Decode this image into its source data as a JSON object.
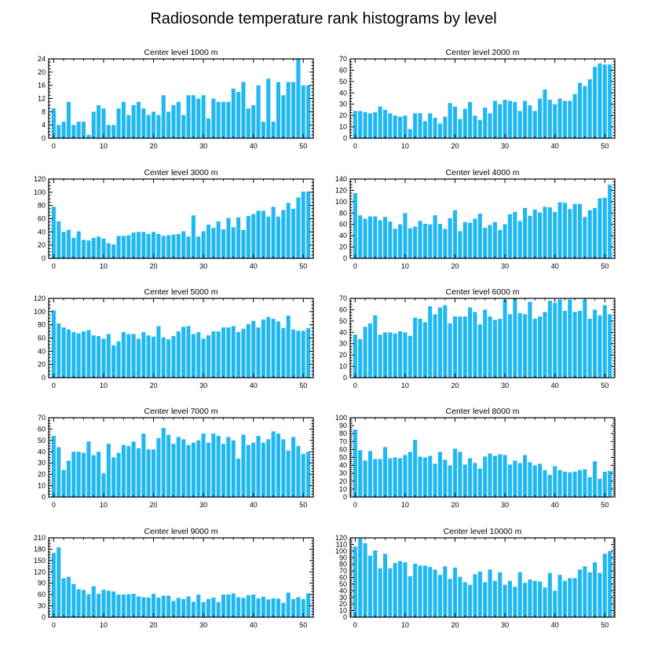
{
  "title": "Radiosonde temperature rank histograms by level",
  "bar_color": "#1fb8f2",
  "chart_data": [
    {
      "type": "bar",
      "title": "Center level 1000 m",
      "x_ticks": [
        0,
        10,
        20,
        30,
        40,
        50
      ],
      "xlim": [
        -1,
        52
      ],
      "ylim": [
        0,
        24
      ],
      "y_ticks": [
        0,
        4,
        8,
        12,
        16,
        20,
        24
      ],
      "values": [
        9,
        4,
        5,
        11,
        4,
        5,
        5,
        1,
        8,
        10,
        9,
        4,
        4,
        9,
        11,
        7,
        10,
        11,
        9,
        7,
        8,
        7,
        13,
        8,
        10,
        11,
        7,
        13,
        13,
        12,
        13,
        6,
        12,
        11,
        11,
        11,
        15,
        14,
        17,
        9,
        10,
        16,
        5,
        18,
        5,
        17,
        13,
        17,
        17,
        24,
        16,
        16
      ]
    },
    {
      "type": "bar",
      "title": "Center level 2000 m",
      "x_ticks": [
        0,
        10,
        20,
        30,
        40,
        50
      ],
      "xlim": [
        -1,
        52
      ],
      "ylim": [
        0,
        70
      ],
      "y_ticks": [
        0,
        10,
        20,
        30,
        40,
        50,
        60,
        70
      ],
      "values": [
        24,
        24,
        23,
        22,
        23,
        28,
        25,
        22,
        20,
        19,
        20,
        8,
        22,
        22,
        15,
        22,
        18,
        13,
        19,
        31,
        28,
        17,
        26,
        32,
        20,
        16,
        27,
        22,
        33,
        30,
        34,
        33,
        32,
        24,
        33,
        29,
        24,
        35,
        43,
        34,
        30,
        35,
        33,
        33,
        39,
        49,
        46,
        52,
        63,
        66,
        65,
        65
      ]
    },
    {
      "type": "bar",
      "title": "Center level 3000 m",
      "x_ticks": [
        0,
        10,
        20,
        30,
        40,
        50
      ],
      "xlim": [
        -1,
        52
      ],
      "ylim": [
        0,
        120
      ],
      "y_ticks": [
        0,
        20,
        40,
        60,
        80,
        100,
        120
      ],
      "values": [
        78,
        56,
        40,
        43,
        31,
        41,
        28,
        27,
        31,
        33,
        30,
        23,
        21,
        34,
        34,
        35,
        39,
        40,
        40,
        37,
        40,
        37,
        34,
        35,
        36,
        37,
        41,
        33,
        65,
        33,
        41,
        51,
        46,
        56,
        44,
        61,
        47,
        62,
        43,
        64,
        67,
        72,
        72,
        63,
        78,
        63,
        73,
        84,
        75,
        92,
        101,
        101
      ]
    },
    {
      "type": "bar",
      "title": "Center level 4000 m",
      "x_ticks": [
        0,
        10,
        20,
        30,
        40,
        50
      ],
      "xlim": [
        -1,
        52
      ],
      "ylim": [
        0,
        140
      ],
      "y_ticks": [
        0,
        20,
        40,
        60,
        80,
        100,
        120,
        140
      ],
      "values": [
        115,
        76,
        70,
        74,
        74,
        67,
        73,
        65,
        52,
        60,
        80,
        53,
        56,
        66,
        61,
        60,
        76,
        61,
        52,
        71,
        85,
        48,
        64,
        63,
        70,
        79,
        54,
        59,
        64,
        50,
        60,
        78,
        82,
        66,
        89,
        75,
        86,
        81,
        91,
        90,
        82,
        99,
        98,
        87,
        96,
        96,
        73,
        85,
        89,
        106,
        107,
        130
      ]
    },
    {
      "type": "bar",
      "title": "Center level 5000 m",
      "x_ticks": [
        0,
        10,
        20,
        30,
        40,
        50
      ],
      "xlim": [
        -1,
        52
      ],
      "ylim": [
        0,
        120
      ],
      "y_ticks": [
        0,
        20,
        40,
        60,
        80,
        100,
        120
      ],
      "values": [
        102,
        82,
        76,
        73,
        69,
        67,
        70,
        72,
        64,
        63,
        59,
        66,
        49,
        55,
        69,
        66,
        66,
        59,
        69,
        64,
        62,
        78,
        61,
        58,
        63,
        70,
        77,
        78,
        66,
        69,
        59,
        64,
        70,
        70,
        76,
        76,
        78,
        69,
        74,
        81,
        86,
        76,
        88,
        92,
        89,
        85,
        75,
        94,
        73,
        71,
        71,
        75
      ]
    },
    {
      "type": "bar",
      "title": "Center level 6000 m",
      "x_ticks": [
        0,
        10,
        20,
        30,
        40,
        50
      ],
      "xlim": [
        -1,
        52
      ],
      "ylim": [
        0,
        70
      ],
      "y_ticks": [
        0,
        10,
        20,
        30,
        40,
        50,
        60,
        70
      ],
      "values": [
        38,
        34,
        45,
        48,
        55,
        38,
        40,
        40,
        39,
        41,
        40,
        37,
        53,
        52,
        49,
        63,
        56,
        62,
        64,
        48,
        54,
        54,
        54,
        62,
        58,
        47,
        60,
        54,
        51,
        52,
        69,
        56,
        70,
        57,
        56,
        67,
        52,
        54,
        58,
        68,
        66,
        69,
        59,
        69,
        58,
        59,
        69,
        52,
        60,
        55,
        64,
        56
      ]
    },
    {
      "type": "bar",
      "title": "Center level 7000 m",
      "x_ticks": [
        0,
        10,
        20,
        30,
        40,
        50
      ],
      "xlim": [
        -1,
        52
      ],
      "ylim": [
        0,
        70
      ],
      "y_ticks": [
        0,
        10,
        20,
        30,
        40,
        50,
        60,
        70
      ],
      "values": [
        54,
        44,
        24,
        32,
        40,
        40,
        39,
        49,
        37,
        40,
        21,
        47,
        35,
        39,
        46,
        45,
        49,
        43,
        56,
        42,
        42,
        52,
        61,
        55,
        47,
        53,
        51,
        46,
        48,
        50,
        56,
        48,
        56,
        54,
        47,
        53,
        50,
        34,
        55,
        46,
        48,
        54,
        48,
        51,
        58,
        56,
        51,
        41,
        53,
        45,
        38,
        40
      ]
    },
    {
      "type": "bar",
      "title": "Center level 8000 m",
      "x_ticks": [
        0,
        10,
        20,
        30,
        40,
        50
      ],
      "xlim": [
        -1,
        52
      ],
      "ylim": [
        0,
        100
      ],
      "y_ticks": [
        0,
        10,
        20,
        30,
        40,
        50,
        60,
        70,
        80,
        90,
        100
      ],
      "values": [
        85,
        59,
        46,
        58,
        48,
        48,
        63,
        49,
        50,
        49,
        53,
        57,
        72,
        51,
        50,
        52,
        42,
        57,
        47,
        40,
        61,
        57,
        41,
        49,
        43,
        36,
        51,
        55,
        52,
        54,
        53,
        41,
        46,
        43,
        53,
        44,
        40,
        42,
        34,
        28,
        39,
        34,
        32,
        31,
        32,
        34,
        35,
        25,
        45,
        23,
        32,
        33
      ]
    },
    {
      "type": "bar",
      "title": "Center level 9000 m",
      "x_ticks": [
        0,
        10,
        20,
        30,
        40,
        50
      ],
      "xlim": [
        -1,
        52
      ],
      "ylim": [
        0,
        210
      ],
      "y_ticks": [
        0,
        30,
        60,
        90,
        120,
        150,
        180,
        210
      ],
      "values": [
        170,
        185,
        103,
        107,
        88,
        74,
        72,
        61,
        82,
        62,
        73,
        70,
        68,
        60,
        60,
        61,
        62,
        55,
        53,
        52,
        62,
        52,
        57,
        57,
        43,
        51,
        48,
        55,
        41,
        60,
        40,
        48,
        52,
        40,
        60,
        60,
        63,
        53,
        51,
        58,
        60,
        50,
        54,
        47,
        50,
        49,
        38,
        65,
        48,
        53,
        48,
        63
      ]
    },
    {
      "type": "bar",
      "title": "Center level 10000 m",
      "x_ticks": [
        0,
        10,
        20,
        30,
        40,
        50
      ],
      "xlim": [
        -1,
        52
      ],
      "ylim": [
        0,
        120
      ],
      "y_ticks": [
        0,
        10,
        20,
        30,
        40,
        50,
        60,
        70,
        80,
        90,
        100,
        110,
        120
      ],
      "values": [
        107,
        119,
        112,
        93,
        101,
        74,
        96,
        74,
        82,
        85,
        83,
        62,
        81,
        78,
        78,
        76,
        72,
        64,
        77,
        58,
        75,
        61,
        53,
        49,
        65,
        69,
        53,
        72,
        55,
        68,
        49,
        55,
        46,
        68,
        52,
        57,
        55,
        54,
        45,
        67,
        40,
        64,
        55,
        59,
        59,
        72,
        77,
        68,
        83,
        67,
        96,
        100
      ]
    }
  ]
}
